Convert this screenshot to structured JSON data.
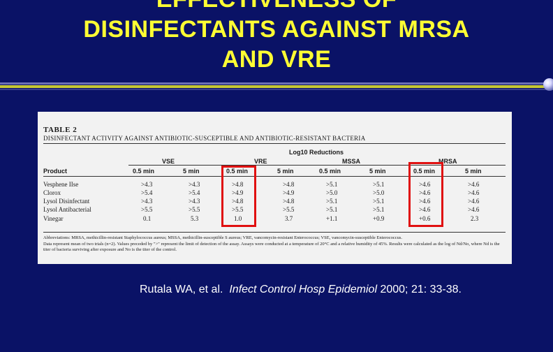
{
  "slide": {
    "title_lines": [
      "EFFECTIVENESS OF",
      "DISINFECTANTS AGAINST MRSA",
      "AND VRE"
    ],
    "citation_authors": "Rutala WA, et al.",
    "citation_journal": "Infect Control Hosp Epidemiol",
    "citation_ref": "2000; 21: 33-38.",
    "colors": {
      "background": "#0a1266",
      "title": "#ffff33",
      "highlight": "#e01010"
    }
  },
  "table": {
    "caption": "TABLE 2",
    "subtitle": "DISINFECTANT ACTIVITY AGAINST ANTIBIOTIC-SUSCEPTIBLE AND ANTIBIOTIC-RESISTANT BACTERIA",
    "log_reductions_label": "Log10 Reductions",
    "product_header": "Product",
    "groups": [
      "VSE",
      "VRE",
      "MSSA",
      "MRSA"
    ],
    "time_headers": [
      "0.5 min",
      "5 min",
      "0.5 min",
      "5 min",
      "0.5 min",
      "5 min",
      "0.5 min",
      "5 min"
    ],
    "rows": [
      {
        "product": "Vesphene IIse",
        "values": [
          ">4.3",
          ">4.3",
          ">4.8",
          ">4.8",
          ">5.1",
          ">5.1",
          ">4.6",
          ">4.6"
        ]
      },
      {
        "product": "Clorox",
        "values": [
          ">5.4",
          ">5.4",
          ">4.9",
          ">4.9",
          ">5.0",
          ">5.0",
          ">4.6",
          ">4.6"
        ]
      },
      {
        "product": "Lysol Disinfectant",
        "values": [
          ">4.3",
          ">4.3",
          ">4.8",
          ">4.8",
          ">5.1",
          ">5.1",
          ">4.6",
          ">4.6"
        ]
      },
      {
        "product": "Lysol Antibacterial",
        "values": [
          ">5.5",
          ">5.5",
          ">5.5",
          ">5.5",
          ">5.1",
          ">5.1",
          ">4.6",
          ">4.6"
        ]
      },
      {
        "product": "Vinegar",
        "values": [
          "0.1",
          "5.3",
          "1.0",
          "3.7",
          "+1.1",
          "+0.9",
          "+0.6",
          "2.3"
        ]
      }
    ],
    "notes_abbrev": "Abbreviations: MRSA, methicillin-resistant Staphylococcus aureus; MSSA, methicillin-susceptible S aureus; VRE, vancomycin-resistant Enterococcus; VSE, vancomycin-susceptible Enterococcus.",
    "notes_data": "Data represent mean of two trials (n=2). Values preceded by \">\" represent the limit of detection of the assay. Assays were conducted at a temperature of 20°C and a relative humidity of 45%. Results were calculated as the log of Nd/No, where Nd is the titer of bacteria surviving after exposure and No is the titer of the control."
  }
}
